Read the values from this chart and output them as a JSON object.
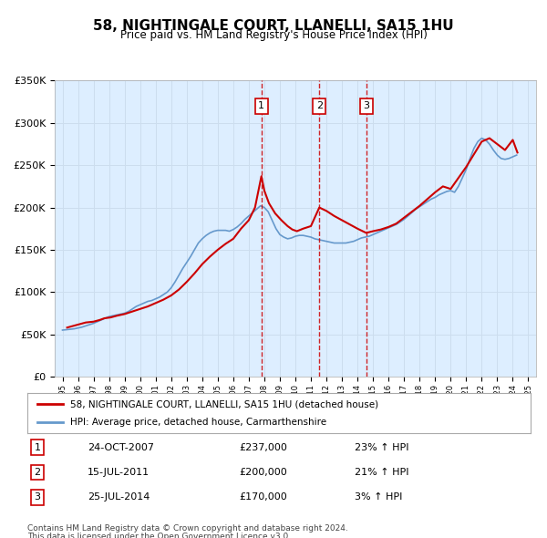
{
  "title": "58, NIGHTINGALE COURT, LLANELLI, SA15 1HU",
  "subtitle": "Price paid vs. HM Land Registry's House Price Index (HPI)",
  "legend_line1": "58, NIGHTINGALE COURT, LLANELLI, SA15 1HU (detached house)",
  "legend_line2": "HPI: Average price, detached house, Carmarthenshire",
  "footer_line1": "Contains HM Land Registry data © Crown copyright and database right 2024.",
  "footer_line2": "This data is licensed under the Open Government Licence v3.0.",
  "transactions": [
    {
      "num": 1,
      "date": "24-OCT-2007",
      "price": 237000,
      "hpi_pct": "23%",
      "direction": "↑"
    },
    {
      "num": 2,
      "date": "15-JUL-2011",
      "price": 200000,
      "hpi_pct": "21%",
      "direction": "↑"
    },
    {
      "num": 3,
      "date": "25-JUL-2014",
      "price": 170000,
      "hpi_pct": "3%",
      "direction": "↑"
    }
  ],
  "transaction_years": [
    2007.81,
    2011.54,
    2014.56
  ],
  "transaction_prices": [
    237000,
    200000,
    170000
  ],
  "ylim": [
    0,
    350000
  ],
  "yticks": [
    0,
    50000,
    100000,
    150000,
    200000,
    250000,
    300000,
    350000
  ],
  "ytick_labels": [
    "£0",
    "£50K",
    "£100K",
    "£150K",
    "£200K",
    "£250K",
    "£300K",
    "£350K"
  ],
  "xlim_start": 1994.5,
  "xlim_end": 2025.5,
  "property_color": "#cc0000",
  "hpi_color": "#6699cc",
  "grid_color": "#ccddee",
  "bg_color": "#ddeeff",
  "hpi_data_x": [
    1995.0,
    1995.25,
    1995.5,
    1995.75,
    1996.0,
    1996.25,
    1996.5,
    1996.75,
    1997.0,
    1997.25,
    1997.5,
    1997.75,
    1998.0,
    1998.25,
    1998.5,
    1998.75,
    1999.0,
    1999.25,
    1999.5,
    1999.75,
    2000.0,
    2000.25,
    2000.5,
    2000.75,
    2001.0,
    2001.25,
    2001.5,
    2001.75,
    2002.0,
    2002.25,
    2002.5,
    2002.75,
    2003.0,
    2003.25,
    2003.5,
    2003.75,
    2004.0,
    2004.25,
    2004.5,
    2004.75,
    2005.0,
    2005.25,
    2005.5,
    2005.75,
    2006.0,
    2006.25,
    2006.5,
    2006.75,
    2007.0,
    2007.25,
    2007.5,
    2007.75,
    2008.0,
    2008.25,
    2008.5,
    2008.75,
    2009.0,
    2009.25,
    2009.5,
    2009.75,
    2010.0,
    2010.25,
    2010.5,
    2010.75,
    2011.0,
    2011.25,
    2011.5,
    2011.75,
    2012.0,
    2012.25,
    2012.5,
    2012.75,
    2013.0,
    2013.25,
    2013.5,
    2013.75,
    2014.0,
    2014.25,
    2014.5,
    2014.75,
    2015.0,
    2015.25,
    2015.5,
    2015.75,
    2016.0,
    2016.25,
    2016.5,
    2016.75,
    2017.0,
    2017.25,
    2017.5,
    2017.75,
    2018.0,
    2018.25,
    2018.5,
    2018.75,
    2019.0,
    2019.25,
    2019.5,
    2019.75,
    2020.0,
    2020.25,
    2020.5,
    2020.75,
    2021.0,
    2021.25,
    2021.5,
    2021.75,
    2022.0,
    2022.25,
    2022.5,
    2022.75,
    2023.0,
    2023.25,
    2023.5,
    2023.75,
    2024.0,
    2024.25
  ],
  "hpi_data_y": [
    55000,
    55500,
    56000,
    56500,
    57500,
    58500,
    60000,
    61500,
    63000,
    65000,
    67000,
    69000,
    71000,
    72000,
    73000,
    74000,
    75000,
    77000,
    80000,
    83000,
    85000,
    87000,
    89000,
    90000,
    92000,
    94000,
    97000,
    100000,
    105000,
    112000,
    120000,
    128000,
    135000,
    142000,
    150000,
    158000,
    163000,
    167000,
    170000,
    172000,
    173000,
    173000,
    173000,
    172000,
    174000,
    177000,
    181000,
    186000,
    190000,
    194000,
    198000,
    202000,
    200000,
    195000,
    185000,
    175000,
    168000,
    165000,
    163000,
    164000,
    166000,
    167000,
    167000,
    166000,
    165000,
    163000,
    162000,
    161000,
    160000,
    159000,
    158000,
    158000,
    158000,
    158000,
    159000,
    160000,
    162000,
    164000,
    165000,
    166000,
    168000,
    170000,
    172000,
    174000,
    176000,
    178000,
    180000,
    183000,
    186000,
    190000,
    194000,
    198000,
    201000,
    204000,
    207000,
    210000,
    212000,
    215000,
    217000,
    219000,
    220000,
    218000,
    225000,
    235000,
    245000,
    258000,
    270000,
    278000,
    282000,
    280000,
    275000,
    268000,
    262000,
    258000,
    257000,
    258000,
    260000,
    262000
  ],
  "property_data_x": [
    1995.3,
    1995.7,
    1996.1,
    1996.5,
    1997.0,
    1997.4,
    1997.7,
    1998.1,
    1998.5,
    1999.0,
    1999.5,
    2000.0,
    2000.5,
    2001.0,
    2001.5,
    2002.0,
    2002.5,
    2003.0,
    2003.5,
    2004.0,
    2004.5,
    2005.0,
    2005.5,
    2006.0,
    2006.5,
    2007.0,
    2007.4,
    2007.81,
    2008.0,
    2008.3,
    2008.7,
    2009.1,
    2009.5,
    2009.8,
    2010.1,
    2010.5,
    2011.0,
    2011.54,
    2012.0,
    2012.5,
    2013.0,
    2013.5,
    2014.0,
    2014.56,
    2015.0,
    2015.5,
    2016.0,
    2016.5,
    2017.0,
    2017.5,
    2018.0,
    2018.5,
    2019.0,
    2019.5,
    2020.0,
    2020.5,
    2021.0,
    2021.5,
    2022.0,
    2022.5,
    2023.0,
    2023.5,
    2024.0,
    2024.3
  ],
  "property_data_y": [
    58000,
    60000,
    62000,
    64000,
    65000,
    67000,
    69000,
    70000,
    72000,
    74000,
    77000,
    80000,
    83000,
    87000,
    91000,
    96000,
    103000,
    112000,
    122000,
    133000,
    142000,
    150000,
    157000,
    163000,
    175000,
    185000,
    200000,
    237000,
    220000,
    205000,
    193000,
    185000,
    178000,
    174000,
    172000,
    175000,
    178000,
    200000,
    196000,
    190000,
    185000,
    180000,
    175000,
    170000,
    172000,
    174000,
    177000,
    181000,
    188000,
    195000,
    202000,
    210000,
    218000,
    225000,
    222000,
    235000,
    248000,
    263000,
    278000,
    282000,
    275000,
    268000,
    280000,
    265000
  ]
}
